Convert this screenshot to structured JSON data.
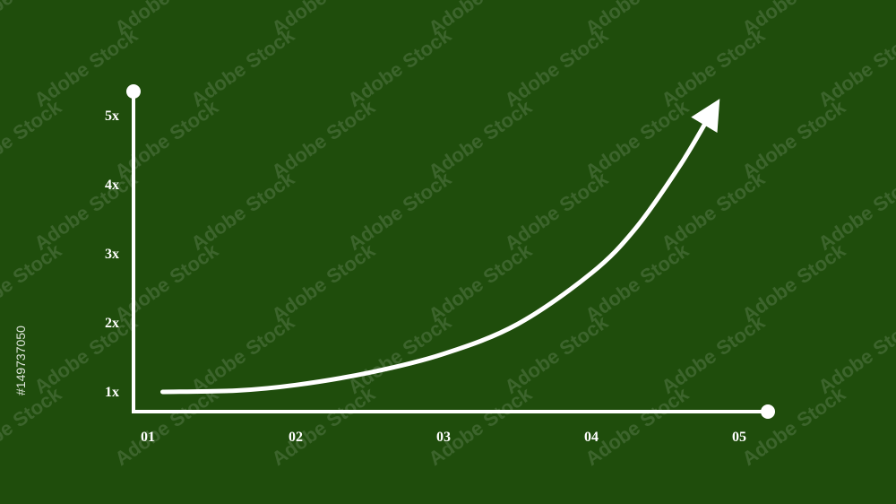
{
  "watermark": {
    "text": "Adobe Stock",
    "id_text": "#149737050"
  },
  "colors": {
    "background": "#1f4d0c",
    "foreground": "#ffffff"
  },
  "chart_data": {
    "type": "line",
    "title": "",
    "xlabel": "",
    "ylabel": "",
    "categories": [
      "01",
      "02",
      "03",
      "04",
      "05"
    ],
    "y_tick_labels": [
      "1x",
      "2x",
      "3x",
      "4x",
      "5x"
    ],
    "xlim": [
      0.9,
      5.2
    ],
    "ylim": [
      0.7,
      5.35
    ],
    "grid": false,
    "legend": "none",
    "series": [
      {
        "x": [
          1.1,
          1.6,
          2.0,
          2.5,
          3.0,
          3.5,
          4.0,
          4.3,
          4.6,
          4.8
        ],
        "y": [
          1.0,
          1.02,
          1.1,
          1.28,
          1.55,
          1.98,
          2.72,
          3.37,
          4.28,
          5.0
        ],
        "end_marker": "arrow"
      }
    ]
  }
}
